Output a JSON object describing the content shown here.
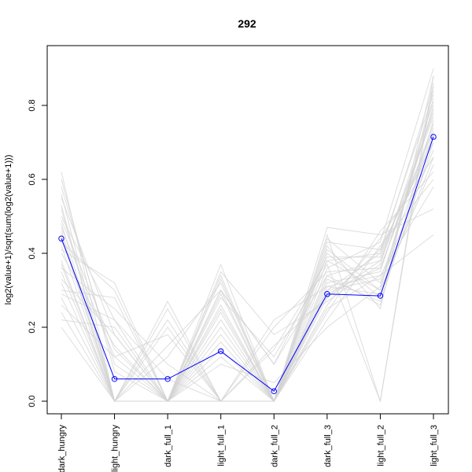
{
  "chart_data": {
    "type": "line",
    "title": "292",
    "xlabel": "",
    "ylabel": "log2(value+1)/sqrt(sum(log2(value+1)))",
    "categories": [
      "dark_hungry",
      "light_hungry",
      "dark_full_1",
      "light_full_1",
      "dark_full_2",
      "dark_full_3",
      "light_full_2",
      "light_full_3"
    ],
    "ylim": [
      -0.03,
      0.96
    ],
    "yticks": [
      0.0,
      0.2,
      0.4,
      0.6,
      0.8
    ],
    "ytick_labels": [
      "0.0",
      "0.2",
      "0.4",
      "0.6",
      "0.8"
    ],
    "grid": false,
    "highlight_series": {
      "color": "#0000ff",
      "marker": "open-circle",
      "values": [
        0.44,
        0.06,
        0.06,
        0.135,
        0.027,
        0.29,
        0.285,
        0.715
      ]
    },
    "background_series_color": "#d3d3d3",
    "background_series": [
      [
        0.62,
        0.0,
        0.0,
        0.34,
        0.0,
        0.3,
        0.33,
        0.72
      ],
      [
        0.58,
        0.1,
        0.0,
        0.3,
        0.1,
        0.34,
        0.38,
        0.78
      ],
      [
        0.55,
        0.18,
        0.0,
        0.0,
        0.0,
        0.38,
        0.3,
        0.82
      ],
      [
        0.52,
        0.0,
        0.22,
        0.0,
        0.15,
        0.28,
        0.41,
        0.7
      ],
      [
        0.5,
        0.22,
        0.0,
        0.25,
        0.0,
        0.42,
        0.25,
        0.88
      ],
      [
        0.48,
        0.0,
        0.15,
        0.3,
        0.0,
        0.26,
        0.44,
        0.66
      ],
      [
        0.47,
        0.12,
        0.0,
        0.0,
        0.2,
        0.35,
        0.36,
        0.75
      ],
      [
        0.45,
        0.0,
        0.0,
        0.33,
        0.0,
        0.4,
        0.28,
        0.84
      ],
      [
        0.43,
        0.3,
        0.0,
        0.18,
        0.0,
        0.22,
        0.42,
        0.6
      ],
      [
        0.42,
        0.0,
        0.27,
        0.0,
        0.0,
        0.32,
        0.35,
        0.79
      ],
      [
        0.4,
        0.15,
        0.0,
        0.28,
        0.12,
        0.37,
        0.0,
        0.86
      ],
      [
        0.38,
        0.0,
        0.0,
        0.22,
        0.0,
        0.44,
        0.32,
        0.68
      ],
      [
        0.36,
        0.25,
        0.1,
        0.0,
        0.0,
        0.3,
        0.4,
        0.73
      ],
      [
        0.35,
        0.0,
        0.0,
        0.35,
        0.18,
        0.27,
        0.37,
        0.81
      ],
      [
        0.33,
        0.18,
        0.0,
        0.12,
        0.0,
        0.41,
        0.3,
        0.64
      ],
      [
        0.32,
        0.0,
        0.2,
        0.0,
        0.0,
        0.36,
        0.43,
        0.9
      ],
      [
        0.3,
        0.28,
        0.0,
        0.26,
        0.0,
        0.33,
        0.27,
        0.7
      ],
      [
        0.28,
        0.0,
        0.0,
        0.3,
        0.1,
        0.39,
        0.39,
        0.77
      ],
      [
        0.26,
        0.12,
        0.18,
        0.0,
        0.0,
        0.25,
        0.34,
        0.58
      ],
      [
        0.24,
        0.0,
        0.0,
        0.2,
        0.0,
        0.43,
        0.41,
        0.83
      ],
      [
        0.22,
        0.2,
        0.0,
        0.0,
        0.22,
        0.31,
        0.29,
        0.66
      ],
      [
        0.2,
        0.0,
        0.12,
        0.32,
        0.0,
        0.29,
        0.36,
        0.74
      ],
      [
        0.56,
        0.0,
        0.0,
        0.16,
        0.0,
        0.47,
        0.45,
        0.52
      ],
      [
        0.6,
        0.08,
        0.0,
        0.1,
        0.05,
        0.2,
        0.31,
        0.8
      ],
      [
        0.46,
        0.0,
        0.25,
        0.0,
        0.0,
        0.45,
        0.0,
        0.88
      ],
      [
        0.41,
        0.32,
        0.0,
        0.24,
        0.0,
        0.24,
        0.46,
        0.62
      ],
      [
        0.37,
        0.0,
        0.0,
        0.37,
        0.0,
        0.34,
        0.26,
        0.76
      ],
      [
        0.29,
        0.22,
        0.06,
        0.0,
        0.14,
        0.38,
        0.4,
        0.85
      ],
      [
        0.53,
        0.0,
        0.0,
        0.29,
        0.0,
        0.31,
        0.34,
        0.45
      ],
      [
        0.49,
        0.14,
        0.0,
        0.14,
        0.0,
        0.28,
        0.38,
        0.72
      ]
    ]
  }
}
